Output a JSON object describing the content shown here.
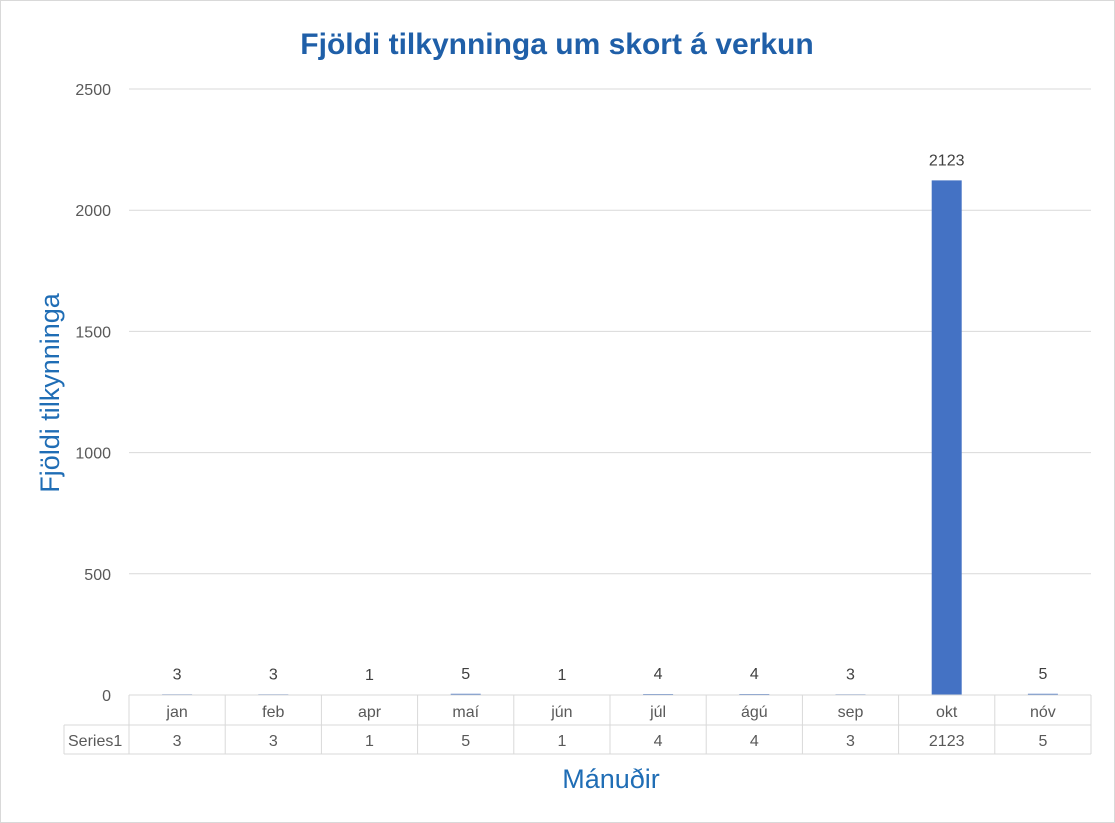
{
  "chart_data": {
    "type": "bar",
    "title": "Fjöldi tilkynninga um skort á verkun",
    "xlabel": "Mánuðir",
    "ylabel": "Fjöldi tilkynninga",
    "categories": [
      "jan",
      "feb",
      "apr",
      "maí",
      "jún",
      "júl",
      "ágú",
      "sep",
      "okt",
      "nóv"
    ],
    "series": [
      {
        "name": "Series1",
        "values": [
          3,
          3,
          1,
          5,
          1,
          4,
          4,
          3,
          2123,
          5
        ]
      }
    ],
    "data_labels": [
      "3",
      "3",
      "1",
      "5",
      "1",
      "4",
      "4",
      "3",
      "2123",
      "5"
    ],
    "ylim": [
      0,
      2500
    ],
    "yticks": [
      0,
      500,
      1000,
      1500,
      2000,
      2500
    ],
    "grid": true,
    "data_table": true,
    "bar_color": "#4472c4"
  }
}
